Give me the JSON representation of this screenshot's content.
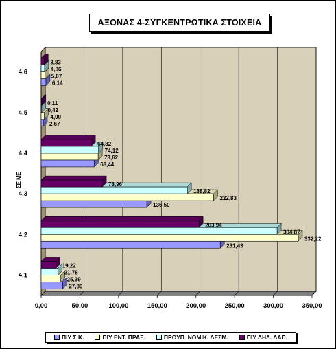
{
  "chart_data": {
    "type": "bar",
    "orientation": "horizontal",
    "title": "ΑΞΟΝΑΣ 4-ΣΥΓΚΕΝΤΡΩΤΙΚΑ ΣΤΟΙΧΕΙΑ",
    "ylabel": "ΣΕ ΜΕ",
    "categories": [
      "4.1",
      "4.2",
      "4.3",
      "4.4",
      "4.5",
      "4.6"
    ],
    "xlim": [
      0,
      350
    ],
    "xticks": [
      "0,00",
      "50,00",
      "100,00",
      "150,00",
      "200,00",
      "250,00",
      "300,00",
      "350,00"
    ],
    "grid": true,
    "legend_position": "bottom",
    "series": [
      {
        "name": "ΠΙΥ Σ.Κ.",
        "color": "#9999ff",
        "values": [
          27.8,
          231.43,
          136.5,
          68.44,
          2.67,
          6.14
        ],
        "labels": [
          "27,80",
          "231,43",
          "136,50",
          "68,44",
          "2,67",
          "6,14"
        ]
      },
      {
        "name": "ΠΙΥ ΕΝΤ. ΠΡΑΞ.",
        "color": "#ffffcc",
        "values": [
          25.39,
          332.22,
          222.83,
          73.62,
          4.0,
          5.07
        ],
        "labels": [
          "25,39",
          "332,22",
          "222,83",
          "73,62",
          "4,00",
          "5,07"
        ]
      },
      {
        "name": "ΠΡΟΥΠ. ΝΟΜΙΚ. ΔΕΣΜ.",
        "color": "#ccffff",
        "values": [
          21.78,
          304.87,
          188.82,
          74.12,
          0.42,
          4.36
        ],
        "labels": [
          "21,78",
          "304,87",
          "188,82",
          "74,12",
          "0,42",
          "4,36"
        ]
      },
      {
        "name": "ΠΙΥ ΔΗΛ. ΔΑΠ.",
        "color": "#660066",
        "values": [
          19.22,
          203.94,
          78.96,
          64.82,
          0.11,
          3.83
        ],
        "labels": [
          "19,22",
          "203,94",
          "78,96",
          "64,82",
          "0,11",
          "3,83"
        ]
      }
    ]
  },
  "legend": {
    "item1": "ΠΙΥ Σ.Κ.",
    "item2": "ΠΙΥ ΕΝΤ. ΠΡΑΞ.",
    "item3": "ΠΡΟΥΠ. ΝΟΜΙΚ. ΔΕΣΜ.",
    "item4": "ΠΙΥ ΔΗΛ. ΔΑΠ.",
    "color1": "#9999ff",
    "color2": "#ffffcc",
    "color3": "#ccffff",
    "color4": "#660066"
  },
  "plot": {
    "background": "#d8d0b8"
  }
}
